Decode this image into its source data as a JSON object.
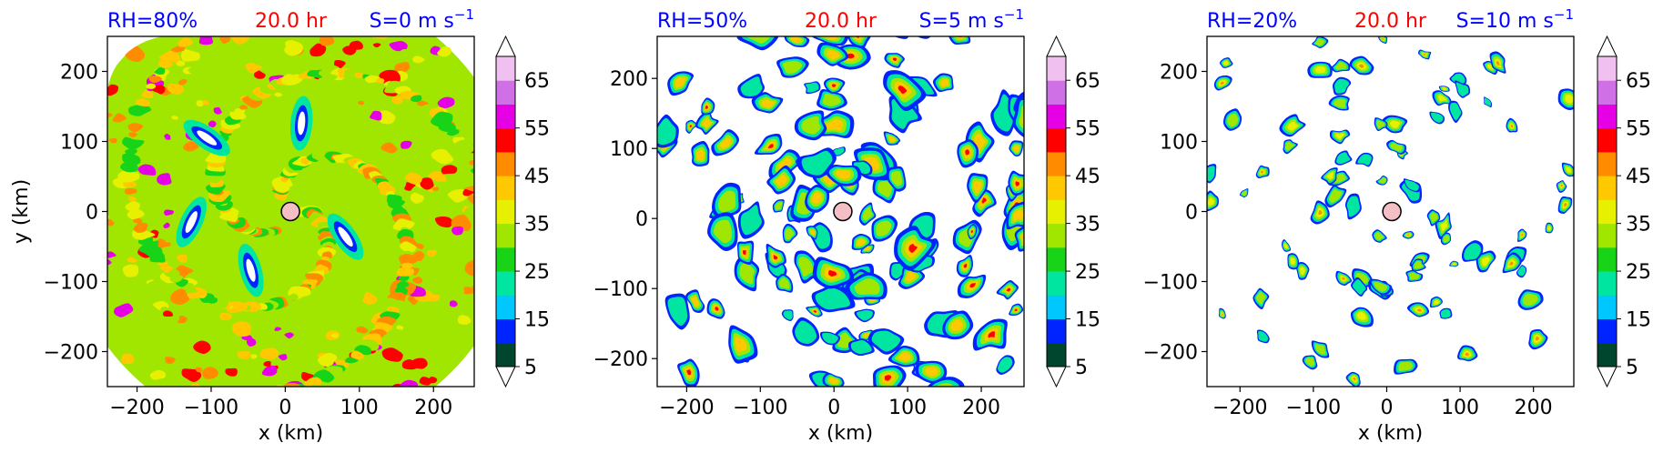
{
  "colors": {
    "title_blue": "#0000ff",
    "title_red": "#ff0000",
    "storm_center": "#f4bfc4",
    "colorbar": [
      "#00452d",
      "#0024ff",
      "#00c8ff",
      "#00e6a0",
      "#18d418",
      "#a0e600",
      "#e6f000",
      "#ffc800",
      "#ff8c00",
      "#ff0000",
      "#e600e6",
      "#d070e6",
      "#f0c0f0"
    ]
  },
  "chart_data": [
    {
      "type": "heatmap",
      "title_left": "RH=80%",
      "title_center": "20.0 hr",
      "title_right_prefix": "S=0 m s",
      "title_right_sup": "−1",
      "xlabel": "x (km)",
      "ylabel": "y (km)",
      "xlim": [
        -240,
        255
      ],
      "ylim": [
        -250,
        250
      ],
      "xticks": [
        -200,
        -100,
        0,
        100,
        200
      ],
      "yticks": [
        -200,
        -100,
        0,
        100,
        200
      ],
      "xticklabels": [
        "−200",
        "−100",
        "0",
        "100",
        "200"
      ],
      "yticklabels": [
        "−200",
        "−100",
        "0",
        "100",
        "200"
      ],
      "colorbar_levels": [
        5,
        10,
        15,
        20,
        25,
        30,
        35,
        40,
        45,
        50,
        55,
        60,
        65,
        70
      ],
      "colorbar_ticklabels": [
        "5",
        "15",
        "25",
        "35",
        "45",
        "55",
        "65"
      ],
      "colorbar_tickvalues": [
        5,
        15,
        25,
        35,
        45,
        55,
        65
      ],
      "center_marker": [
        7,
        0
      ],
      "coverage": "dense"
    },
    {
      "type": "heatmap",
      "title_left": "RH=50%",
      "title_center": "20.0 hr",
      "title_right_prefix": "S=5 m s",
      "title_right_sup": "−1",
      "xlabel": "x (km)",
      "ylabel": "",
      "xlim": [
        -240,
        258
      ],
      "ylim": [
        -240,
        260
      ],
      "xticks": [
        -200,
        -100,
        0,
        100,
        200
      ],
      "yticks": [
        -200,
        -100,
        0,
        100,
        200
      ],
      "xticklabels": [
        "−200",
        "−100",
        "0",
        "100",
        "200"
      ],
      "yticklabels": [
        "−200",
        "−100",
        "0",
        "100",
        "200"
      ],
      "colorbar_levels": [
        5,
        10,
        15,
        20,
        25,
        30,
        35,
        40,
        45,
        50,
        55,
        60,
        65,
        70
      ],
      "colorbar_ticklabels": [
        "5",
        "15",
        "25",
        "35",
        "45",
        "55",
        "65"
      ],
      "colorbar_tickvalues": [
        5,
        15,
        25,
        35,
        45,
        55,
        65
      ],
      "center_marker": [
        12,
        10
      ],
      "coverage": "medium"
    },
    {
      "type": "heatmap",
      "title_left": "RH=20%",
      "title_center": "20.0 hr",
      "title_right_prefix": "S=10 m s",
      "title_right_sup": "−1",
      "xlabel": "x (km)",
      "ylabel": "",
      "xlim": [
        -245,
        255
      ],
      "ylim": [
        -250,
        250
      ],
      "xticks": [
        -200,
        -100,
        0,
        100,
        200
      ],
      "yticks": [
        -200,
        -100,
        0,
        100,
        200
      ],
      "xticklabels": [
        "−200",
        "−100",
        "0",
        "100",
        "200"
      ],
      "yticklabels": [
        "−200",
        "−100",
        "0",
        "100",
        "200"
      ],
      "colorbar_levels": [
        5,
        10,
        15,
        20,
        25,
        30,
        35,
        40,
        45,
        50,
        55,
        60,
        65,
        70
      ],
      "colorbar_ticklabels": [
        "5",
        "15",
        "25",
        "35",
        "45",
        "55",
        "65"
      ],
      "colorbar_tickvalues": [
        5,
        15,
        25,
        35,
        45,
        55,
        65
      ],
      "center_marker": [
        7,
        0
      ],
      "coverage": "sparse"
    }
  ]
}
